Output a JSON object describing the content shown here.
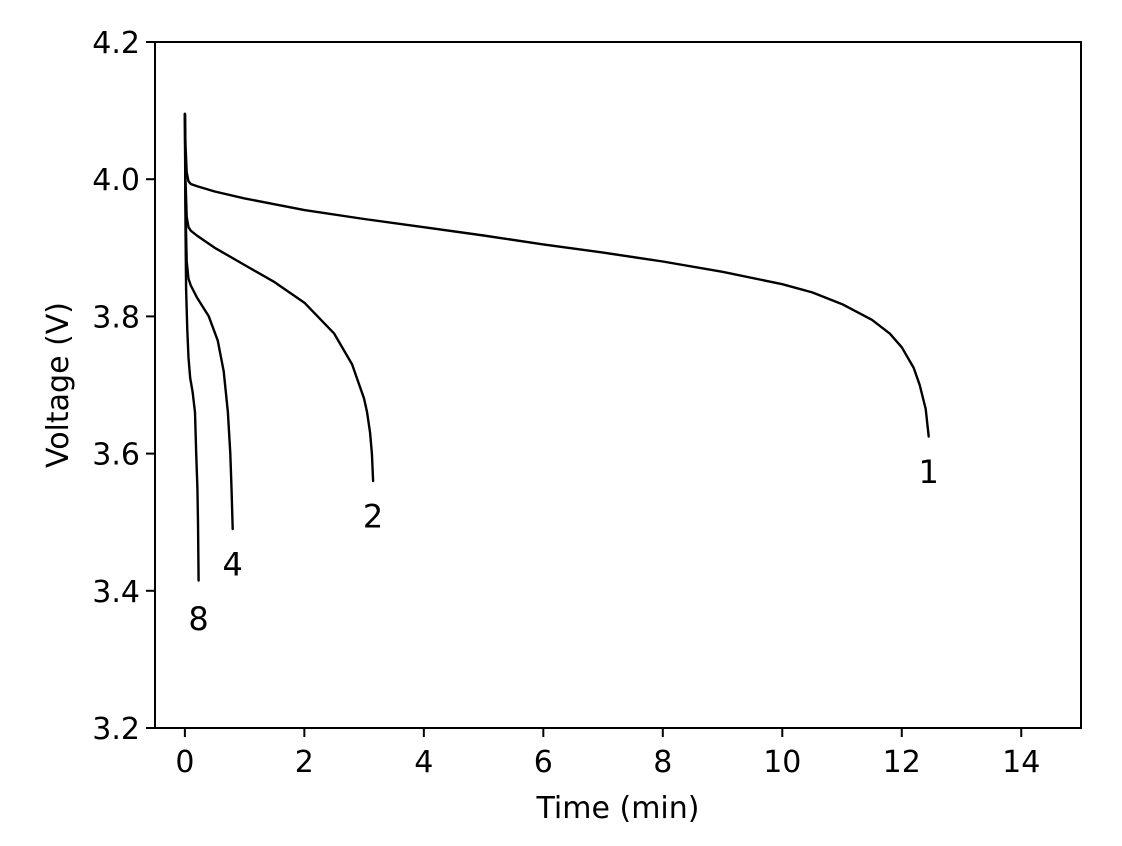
{
  "chart_data": {
    "type": "line",
    "title": "",
    "xlabel": "Time (min)",
    "ylabel": "Voltage (V)",
    "xlim": [
      -0.5,
      15
    ],
    "ylim": [
      3.2,
      4.2
    ],
    "grid": false,
    "legend": "none",
    "xticks": [
      0,
      2,
      4,
      6,
      8,
      10,
      12,
      14
    ],
    "yticks": [
      3.2,
      3.4,
      3.6,
      3.8,
      4.0,
      4.2
    ],
    "xtick_labels": [
      "0",
      "2",
      "4",
      "6",
      "8",
      "10",
      "12",
      "14"
    ],
    "ytick_labels": [
      "3.2",
      "3.4",
      "3.6",
      "3.8",
      "4.0",
      "4.2"
    ],
    "line_color": "#000000",
    "series": [
      {
        "label": "1",
        "x": [
          0,
          0.01,
          0.03,
          0.06,
          0.1,
          0.2,
          0.5,
          1,
          2,
          3,
          4,
          5,
          6,
          7,
          8,
          9,
          10,
          10.5,
          11,
          11.5,
          11.8,
          12.0,
          12.2,
          12.3,
          12.4,
          12.45
        ],
        "y": [
          4.095,
          4.05,
          4.01,
          3.997,
          3.993,
          3.99,
          3.982,
          3.972,
          3.955,
          3.942,
          3.93,
          3.918,
          3.905,
          3.893,
          3.88,
          3.865,
          3.847,
          3.835,
          3.818,
          3.795,
          3.775,
          3.755,
          3.725,
          3.7,
          3.665,
          3.625
        ]
      },
      {
        "label": "2",
        "x": [
          0,
          0.01,
          0.03,
          0.06,
          0.1,
          0.2,
          0.5,
          1,
          1.5,
          2,
          2.5,
          2.8,
          3.0,
          3.05,
          3.1,
          3.13,
          3.15
        ],
        "y": [
          4.095,
          4.0,
          3.945,
          3.93,
          3.925,
          3.918,
          3.9,
          3.875,
          3.85,
          3.82,
          3.775,
          3.73,
          3.68,
          3.66,
          3.63,
          3.6,
          3.56
        ]
      },
      {
        "label": "4",
        "x": [
          0,
          0.01,
          0.03,
          0.06,
          0.1,
          0.2,
          0.4,
          0.55,
          0.65,
          0.72,
          0.76,
          0.78,
          0.8
        ],
        "y": [
          4.095,
          3.96,
          3.88,
          3.855,
          3.845,
          3.828,
          3.8,
          3.765,
          3.72,
          3.66,
          3.6,
          3.55,
          3.49
        ]
      },
      {
        "label": "8",
        "x": [
          0,
          0.01,
          0.02,
          0.04,
          0.06,
          0.09,
          0.13,
          0.17,
          0.19,
          0.21,
          0.22,
          0.23
        ],
        "y": [
          4.095,
          3.93,
          3.84,
          3.78,
          3.74,
          3.71,
          3.69,
          3.66,
          3.6,
          3.55,
          3.5,
          3.415
        ]
      }
    ],
    "annotations": [
      {
        "text": "1",
        "x": 12.45,
        "y": 3.575
      },
      {
        "text": "2",
        "x": 3.15,
        "y": 3.51
      },
      {
        "text": "4",
        "x": 0.8,
        "y": 3.44
      },
      {
        "text": "8",
        "x": 0.23,
        "y": 3.36
      }
    ]
  }
}
